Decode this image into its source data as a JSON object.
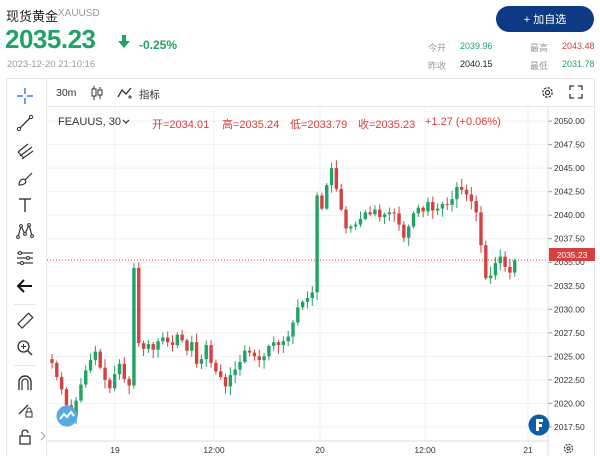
{
  "header": {
    "title": "现货黄金",
    "symbol": "XAUUSD",
    "price": "2035.23",
    "change_pct": "-0.25%",
    "timestamp": "2023-12-20 21:10:16",
    "add_button": "+ 加自选",
    "stats": {
      "open_label": "今开",
      "open_value": "2039.96",
      "high_label": "最高",
      "high_value": "2043.48",
      "prev_close_label": "昨收",
      "prev_close_value": "2040.15",
      "low_label": "最低",
      "low_value": "2031.78"
    }
  },
  "toolbar": {
    "interval": "30m",
    "indicators_label": "指标"
  },
  "legend": {
    "symbol": "FEAUUS, 30",
    "open": "开=2034.01",
    "high": "高=2035.24",
    "low": "低=2033.79",
    "close": "收=2035.23",
    "change": "+1.27 (+0.06%)"
  },
  "current_price_label": "2035.23",
  "colors": {
    "up": "#21a366",
    "down": "#d64040",
    "brand": "#0d3a82",
    "price_line": "#d64040"
  },
  "chart_data": {
    "type": "candlestick",
    "y_ticks": [
      "2050.00",
      "2047.50",
      "2045.00",
      "2042.50",
      "2040.00",
      "2037.50",
      "2035.00",
      "2032.50",
      "2030.00",
      "2027.50",
      "2025.00",
      "2022.50",
      "2020.00",
      "2017.50"
    ],
    "x_ticks": [
      "19",
      "12:00",
      "20",
      "12:00",
      "21"
    ],
    "ylim": [
      2016.0,
      2051.5
    ],
    "price_line": 2035.23,
    "closes": [
      2024.3,
      2022.8,
      2021.5,
      2019.8,
      2018.6,
      2020.3,
      2022.0,
      2023.5,
      2024.6,
      2025.5,
      2023.8,
      2022.5,
      2021.6,
      2023.1,
      2024.2,
      2022.6,
      2021.9,
      2034.4,
      2026.4,
      2025.8,
      2026.3,
      2025.7,
      2026.6,
      2027.0,
      2026.5,
      2026.2,
      2027.3,
      2026.7,
      2025.6,
      2026.5,
      2024.2,
      2024.7,
      2026.2,
      2024.3,
      2023.4,
      2022.8,
      2021.8,
      2023.0,
      2023.6,
      2024.4,
      2025.6,
      2025.4,
      2025.0,
      2024.6,
      2025.0,
      2026.1,
      2026.5,
      2026.2,
      2026.6,
      2027.1,
      2028.6,
      2030.2,
      2030.8,
      2031.2,
      2031.8,
      2042.1,
      2040.7,
      2043.2,
      2045.0,
      2042.8,
      2040.6,
      2038.6,
      2038.8,
      2039.0,
      2039.6,
      2040.3,
      2040.1,
      2040.6,
      2039.8,
      2040.1,
      2040.3,
      2040.2,
      2039.0,
      2037.6,
      2038.8,
      2040.2,
      2040.8,
      2040.4,
      2041.4,
      2040.5,
      2040.7,
      2041.2,
      2041.1,
      2041.7,
      2043.0,
      2042.7,
      2042.2,
      2041.5,
      2040.3,
      2036.8,
      2033.3,
      2033.6,
      2034.9,
      2035.6,
      2034.5,
      2033.9,
      2035.2
    ]
  }
}
